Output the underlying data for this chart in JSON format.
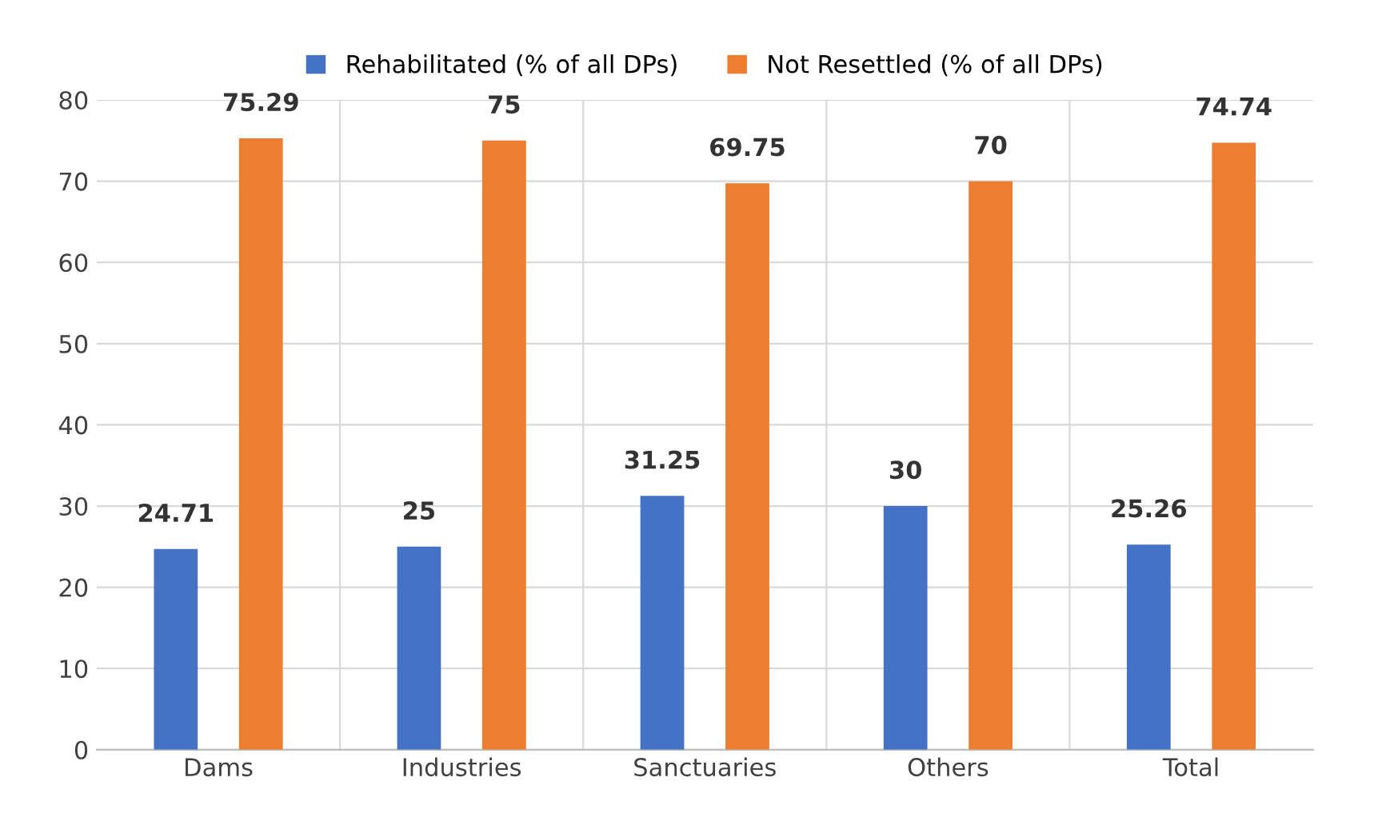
{
  "chart_data": {
    "type": "bar",
    "categories": [
      "Dams",
      "Industries",
      "Sanctuaries",
      "Others",
      "Total"
    ],
    "series": [
      {
        "name": "Rehabilitated (% of all DPs)",
        "color": "#4472c4",
        "values": [
          24.71,
          25,
          31.25,
          30,
          25.26
        ]
      },
      {
        "name": "Not Resettled (% of all DPs)",
        "color": "#ed7d31",
        "values": [
          75.29,
          75,
          69.75,
          70,
          74.74
        ]
      }
    ],
    "ylim": [
      0,
      80
    ],
    "yticks": [
      0,
      10,
      20,
      30,
      40,
      50,
      60,
      70,
      80
    ],
    "grid": true,
    "legend": "top",
    "data_labels": true
  }
}
